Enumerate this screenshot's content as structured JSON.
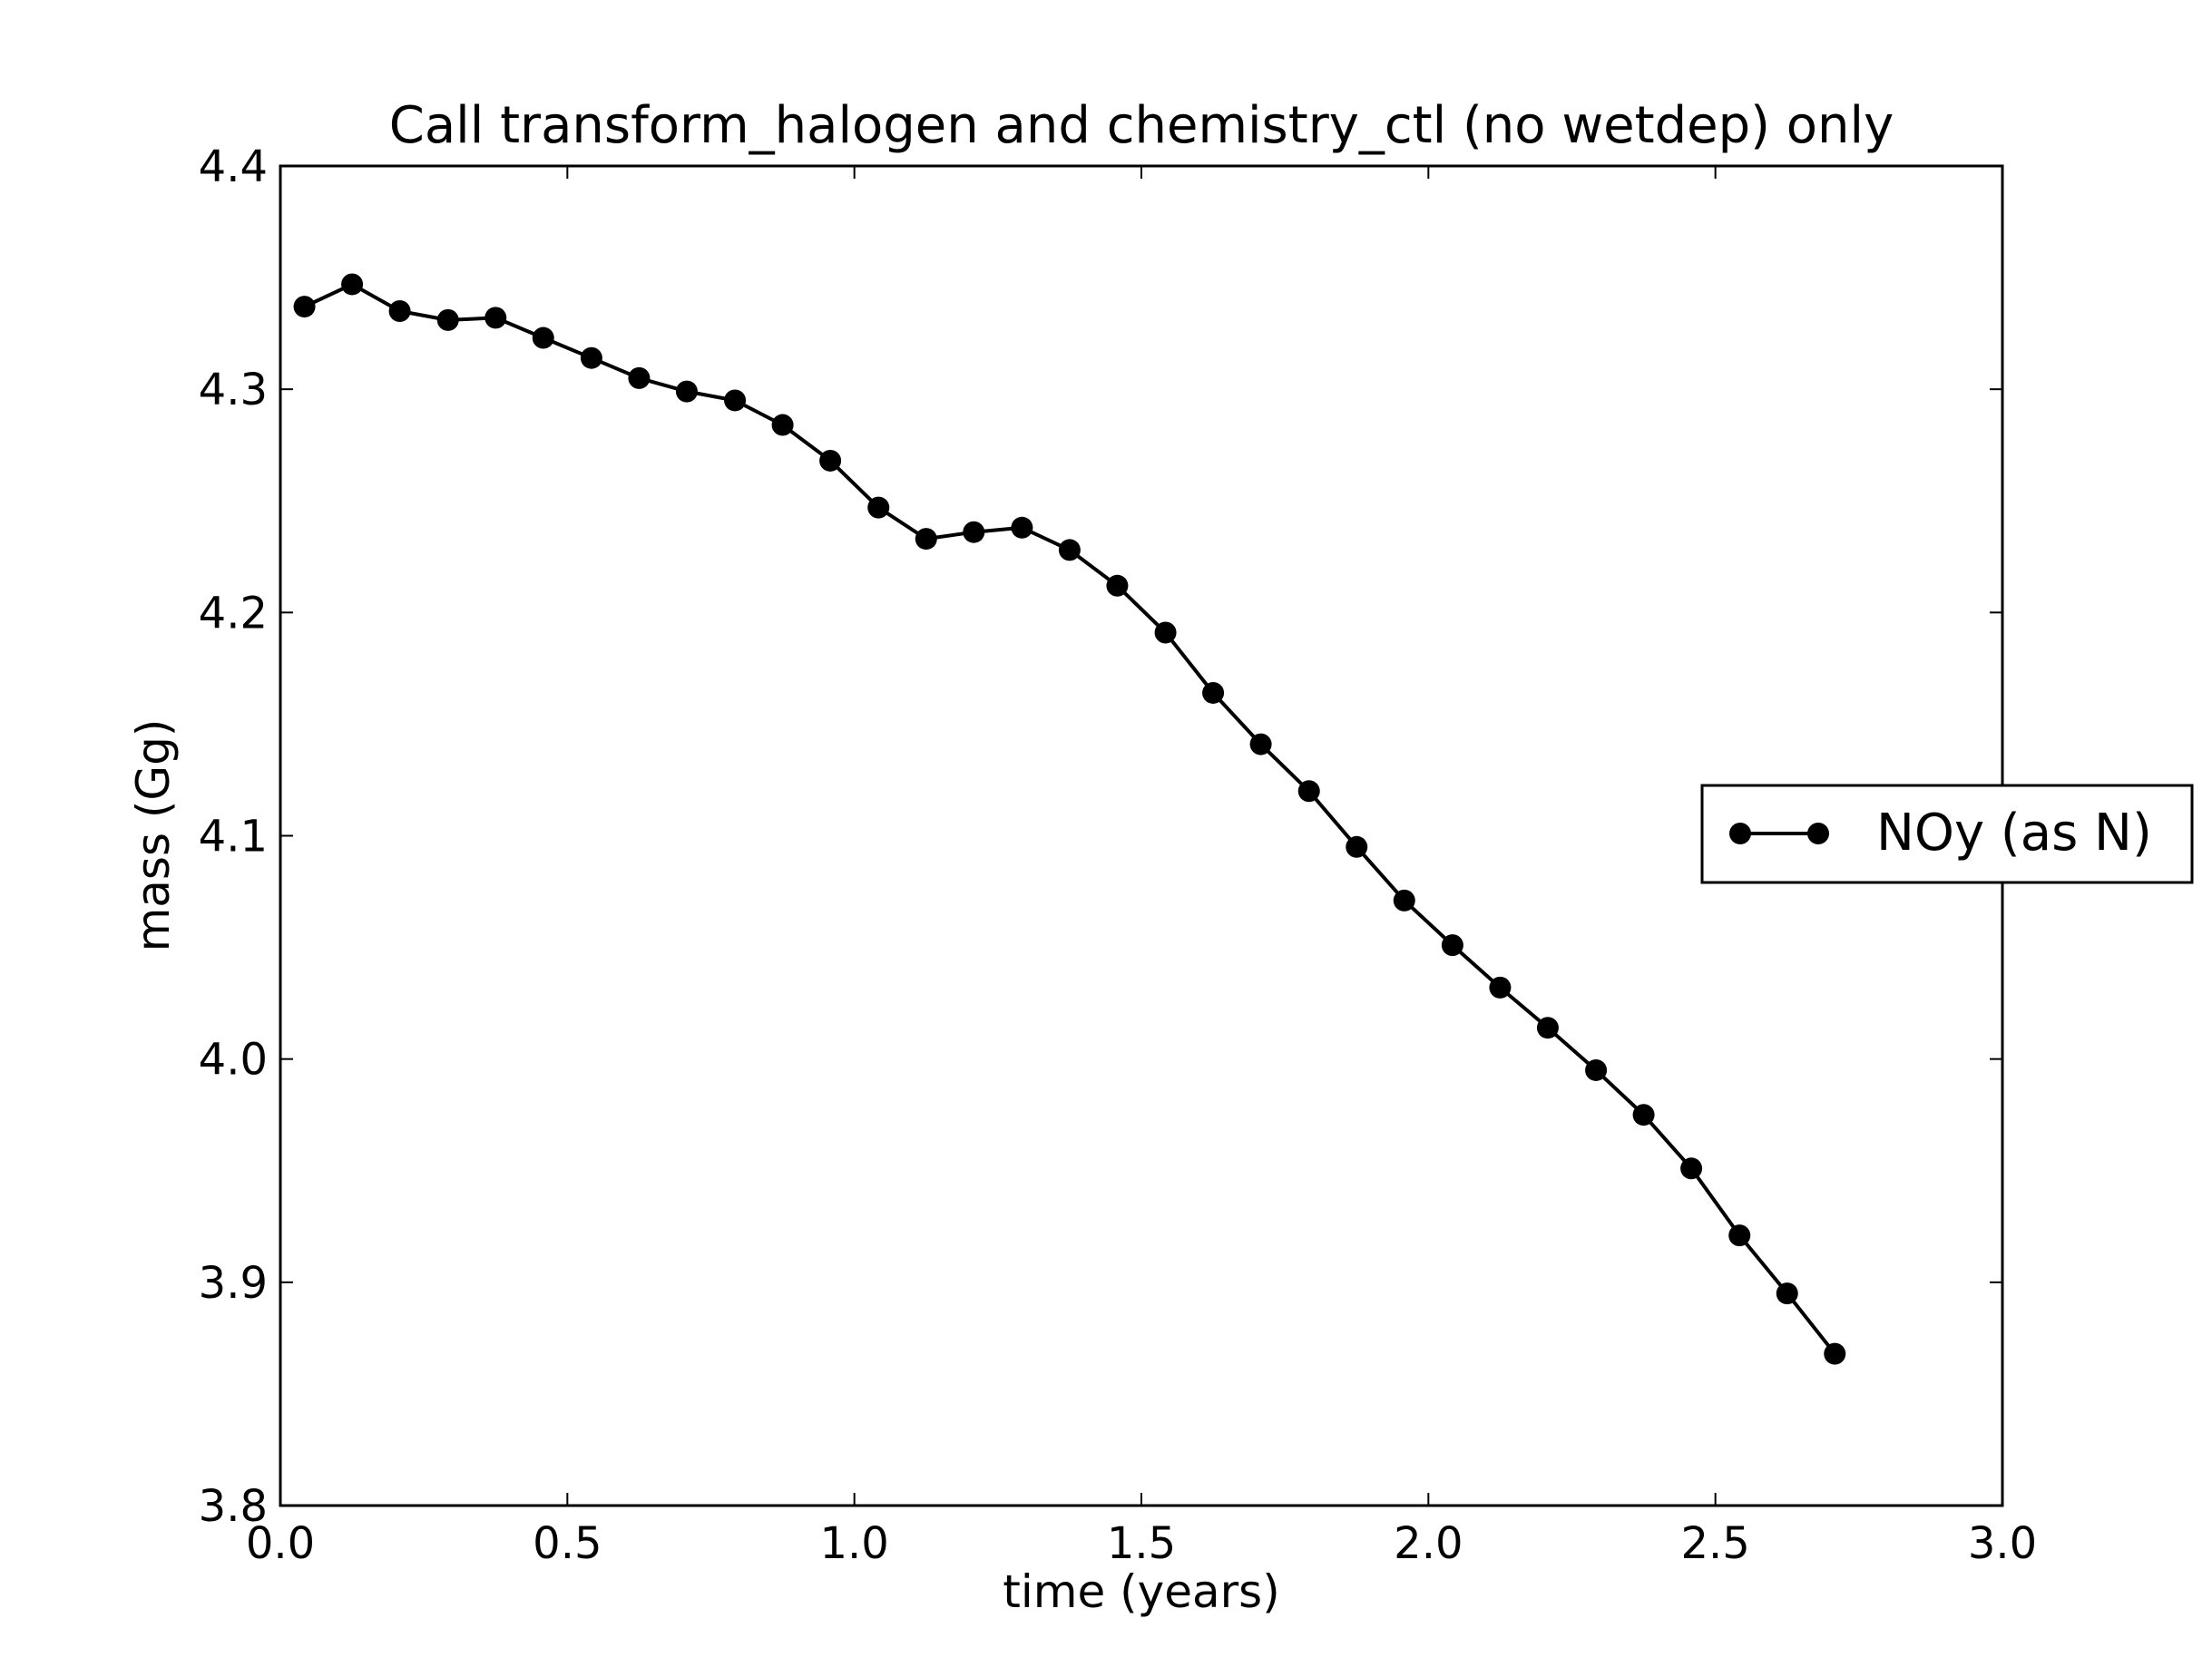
{
  "chart_data": {
    "type": "line",
    "title": "Call transform_halogen and chemistry_ctl (no wetdep) only",
    "xlabel": "time (years)",
    "ylabel": "mass (Gg)",
    "xlim": [
      0.0,
      3.0
    ],
    "ylim": [
      3.8,
      4.4
    ],
    "xticks": [
      0.0,
      0.5,
      1.0,
      1.5,
      2.0,
      2.5,
      3.0
    ],
    "xtick_labels": [
      "0.0",
      "0.5",
      "1.0",
      "1.5",
      "2.0",
      "2.5",
      "3.0"
    ],
    "yticks": [
      3.8,
      3.9,
      4.0,
      4.1,
      4.2,
      4.3,
      4.4
    ],
    "ytick_labels": [
      "3.8",
      "3.9",
      "4.0",
      "4.1",
      "4.2",
      "4.3",
      "4.4"
    ],
    "grid": false,
    "legend_position": "center-right, outside plot",
    "series": [
      {
        "name": "NOy (as N)",
        "color": "#000000",
        "marker": "circle",
        "x": [
          0.042,
          0.125,
          0.208,
          0.292,
          0.375,
          0.458,
          0.542,
          0.625,
          0.708,
          0.792,
          0.875,
          0.958,
          1.042,
          1.125,
          1.208,
          1.292,
          1.375,
          1.458,
          1.542,
          1.625,
          1.708,
          1.792,
          1.875,
          1.958,
          2.042,
          2.125,
          2.208,
          2.292,
          2.375,
          2.458,
          2.542,
          2.625,
          2.708
        ],
        "y": [
          4.337,
          4.347,
          4.335,
          4.331,
          4.332,
          4.323,
          4.314,
          4.305,
          4.299,
          4.295,
          4.284,
          4.268,
          4.247,
          4.233,
          4.236,
          4.238,
          4.228,
          4.212,
          4.191,
          4.164,
          4.141,
          4.12,
          4.095,
          4.071,
          4.051,
          4.032,
          4.014,
          3.995,
          3.975,
          3.951,
          3.921,
          3.895,
          3.868
        ]
      }
    ]
  }
}
